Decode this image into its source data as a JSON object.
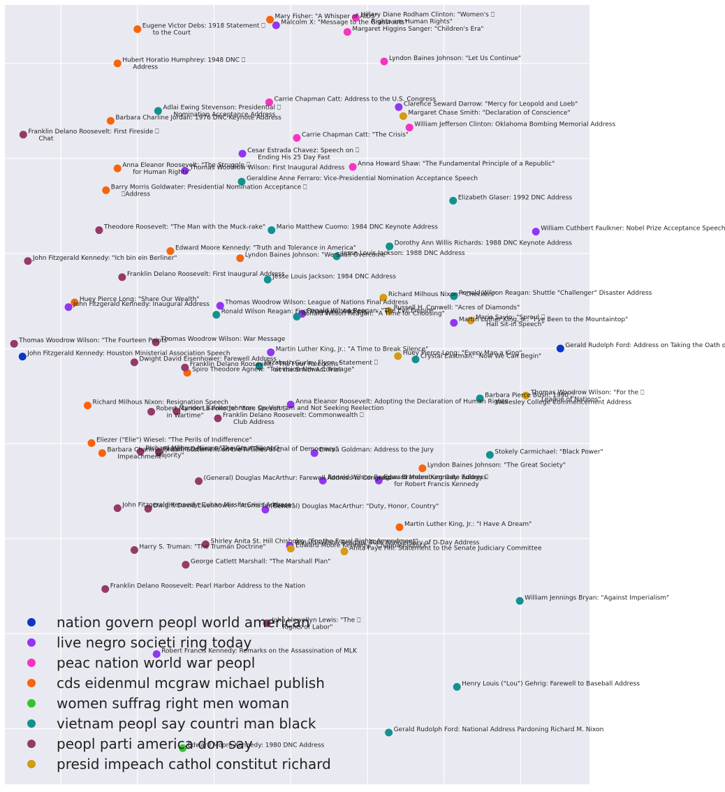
{
  "chart_data": {
    "type": "scatter",
    "title": "",
    "xlabel": "",
    "ylabel": "",
    "xlim": [
      -3.73,
      3.9
    ],
    "ylim": [
      -8.17,
      8.23
    ],
    "grid": true,
    "axes_background": "#e9e9f1",
    "grid_color": "#ffffff",
    "x_gridlines": [
      -3,
      -2,
      -1,
      0,
      1,
      2,
      3
    ],
    "y_gridlines": [
      -7,
      -5,
      -3,
      -1,
      1,
      3,
      5,
      7
    ],
    "legend_position": "bottom-left",
    "series": [
      {
        "name": "nation govern peopl world american",
        "color": "#0b36c9",
        "points": [
          {
            "x": 3.52,
            "y": 1.0,
            "label": "Gerald Rudolph Ford: Address on Taking the Oath of Office"
          },
          {
            "x": -3.5,
            "y": 0.83,
            "label": "John Fitzgerald Kennedy: Houston Ministerial Association Speech"
          }
        ]
      },
      {
        "name": "live negro societi ring today",
        "color": "#9236ef",
        "points": [
          {
            "x": -0.19,
            "y": 7.8,
            "label": "Malcolm X: \"Message to the Grassroots\""
          },
          {
            "x": 1.41,
            "y": 6.08,
            "label": "Clarence Seward Darrow: \"Mercy for Leopold and Loeb\""
          },
          {
            "x": -0.63,
            "y": 5.1,
            "label": "Cesar Estrada Chavez: Speech on ⎕\nEnding His 25 Day Fast"
          },
          {
            "x": -1.38,
            "y": 4.74,
            "label": "Thomas Woodrow Wilson: First Inaugural Address"
          },
          {
            "x": 3.2,
            "y": 3.46,
            "label": "William Cuthbert Faulkner: Nobel Prize Acceptance Speech"
          },
          {
            "x": -2.9,
            "y": 1.87,
            "label": "John Fitzgerald Kennedy: Inaugural Address"
          },
          {
            "x": -0.92,
            "y": 1.9,
            "label": "Thomas Woodrow Wilson: League of Nations Final Address"
          },
          {
            "x": 0.15,
            "y": 1.73,
            "label": "Ronald Wilson Reagan: \"The Evil Empire\""
          },
          {
            "x": 2.13,
            "y": 1.54,
            "label": "Martin Luther King, Jr.: \"I've Been to the Mountaintop\""
          },
          {
            "x": -0.26,
            "y": 0.92,
            "label": "Martin Luther King, Jr.: \"A Time to Break Silence\""
          },
          {
            "x": 0.0,
            "y": -0.18,
            "label": "Anna Eleanor Roosevelt: Adopting the Declaration of Human Rights"
          },
          {
            "x": 0.31,
            "y": -1.2,
            "label": "Emma Goldman: Address to the Jury"
          },
          {
            "x": 0.42,
            "y": -1.78,
            "label": "Ronald Wilson Reagan: Brandenburg Gate Address"
          },
          {
            "x": 1.15,
            "y": -1.78,
            "label": "Edward Moore Kennedy: Eulogy ⎕\nfor Robert Francis Kennedy"
          },
          {
            "x": -0.33,
            "y": -2.39,
            "label": "(General) Douglas MacArthur: \"Duty, Honor, Country\""
          },
          {
            "x": -0.01,
            "y": -3.15,
            "label": "Ronald Wilson Reagan: 40th Anniversary of D-Day Address"
          },
          {
            "x": -1.75,
            "y": -5.43,
            "label": "Robert Francis Kennedy: Remarks on the Assassination of MLK"
          }
        ]
      },
      {
        "name": "peac nation world war peopl",
        "color": "#f535c0",
        "points": [
          {
            "x": 0.85,
            "y": 7.96,
            "label": "Hillary Diane Rodham Clinton: \"Women's ⎕\nRights are Human Rights\""
          },
          {
            "x": 0.74,
            "y": 7.66,
            "label": "Margaret Higgins Sanger: \"Children's Era\""
          },
          {
            "x": 1.22,
            "y": 7.04,
            "label": "Lyndon Baines Johnson: \"Let Us Continue\""
          },
          {
            "x": -0.28,
            "y": 6.18,
            "label": "Carrie Chapman Catt: Address to the U.S. Congress"
          },
          {
            "x": 1.55,
            "y": 5.65,
            "label": "William Jefferson Clinton: Oklahoma Bombing Memorial Address"
          },
          {
            "x": 0.08,
            "y": 5.43,
            "label": "Carrie Chapman Catt: \"The Crisis\""
          },
          {
            "x": 0.81,
            "y": 4.82,
            "label": "Anna Howard Shaw: \"The Fundamental Principle of a Republic\""
          }
        ]
      },
      {
        "name": "cds eidenmul mcgraw michael publish",
        "color": "#f7640b",
        "points": [
          {
            "x": -0.27,
            "y": 7.92,
            "label": "Mary Fisher: \"A Whisper of AIDS\""
          },
          {
            "x": -2.0,
            "y": 7.72,
            "label": "Eugene Victor Debs: 1918 Statement ⎕\nto the Court"
          },
          {
            "x": -2.26,
            "y": 7.0,
            "label": "Hubert Horatio Humphrey: 1948 DNC ⎕\nAddress"
          },
          {
            "x": -2.35,
            "y": 5.79,
            "label": "Barbara Charline Jordan: 1976 DNC Keynote Address"
          },
          {
            "x": -2.26,
            "y": 4.79,
            "label": "Anna Eleanor Roosevelt: \"The Struggle ⎕\nfor Human Rights\""
          },
          {
            "x": -2.41,
            "y": 4.33,
            "label": "Barry Morris Goldwater: Presidential Nomination Acceptance ⎕\n⎕Address"
          },
          {
            "x": -1.57,
            "y": 3.05,
            "label": "Edward Moore Kennedy: \"Truth and Tolerance in America\""
          },
          {
            "x": -0.66,
            "y": 2.9,
            "label": "Lyndon Baines Johnson: \"We Shall Overcome\""
          },
          {
            "x": -2.82,
            "y": 1.97,
            "label": "Huey Pierce Long: \"Share Our Wealth\""
          },
          {
            "x": -1.35,
            "y": 0.49,
            "label": "Spiro Theodore Agnew: \"Television News Coverage\""
          },
          {
            "x": -2.65,
            "y": -0.2,
            "label": "Richard Milhous Nixon: Resignation Speech"
          },
          {
            "x": -2.6,
            "y": -0.99,
            "label": "Eliezer (\"Elie\") Wiesel: \"The Perils of Indifference\""
          },
          {
            "x": -2.46,
            "y": -1.2,
            "label": "Barbara Charline Jordan: Statement on the Articles of ⎕\nImpeachment"
          },
          {
            "x": 1.72,
            "y": -1.52,
            "label": "Lyndon Baines Johnson: \"The Great Society\""
          },
          {
            "x": 1.42,
            "y": -2.76,
            "label": "Martin Luther King, Jr.: \"I Have A Dream\""
          }
        ]
      },
      {
        "name": "women suffrag right men woman",
        "color": "#34c32e",
        "points": [
          {
            "x": -1.41,
            "y": -7.41,
            "label": "Edward Moore Kennedy: 1980 DNC Address"
          }
        ]
      },
      {
        "name": "vietnam peopl say countri man black",
        "color": "#12928f",
        "points": [
          {
            "x": -1.73,
            "y": 6.0,
            "label": "Adlai Ewing Stevenson: Presidential ⎕\nNomination Acceptance Address"
          },
          {
            "x": -0.64,
            "y": 4.51,
            "label": "Geraldine Anne Ferraro: Vice-Presidential Nomination Acceptance Speech"
          },
          {
            "x": 2.12,
            "y": 4.11,
            "label": "Elizabeth Glaser: 1992 DNC Address"
          },
          {
            "x": -0.25,
            "y": 3.49,
            "label": "Mario Matthew Cuomo: 1984 DNC Keynote Address"
          },
          {
            "x": 1.29,
            "y": 3.15,
            "label": "Dorothy Ann Willis Richards: 1988 DNC Keynote Address"
          },
          {
            "x": 0.6,
            "y": 2.94,
            "label": "Jesse Louis Jackson: 1988 DNC Address"
          },
          {
            "x": -0.3,
            "y": 2.45,
            "label": "Jesse Louis Jackson: 1984 DNC Address"
          },
          {
            "x": 2.13,
            "y": 2.1,
            "label": "Ronald Wilson Reagan: Shuttle \"Challenger\" Disaster Address"
          },
          {
            "x": -0.97,
            "y": 1.71,
            "label": "Ronald Wilson Reagan: First Inaugural Address"
          },
          {
            "x": 0.08,
            "y": 1.67,
            "label": "Ronald Wilson Reagan: \"A Time for Choosing\""
          },
          {
            "x": 1.63,
            "y": 0.77,
            "label": "Crystal Eastman: \"Now We Can Begin\""
          },
          {
            "x": -0.41,
            "y": 0.63,
            "label": "Elizabeth Gurley Flynn: Statement ⎕\nat the Smith Act Trial"
          },
          {
            "x": 2.47,
            "y": -0.05,
            "label": "Barbara Pierce Bush: 1990 ⎕\nWellesley College Commencement Address"
          },
          {
            "x": 2.6,
            "y": -1.24,
            "label": "Stokely Carmichael: \"Black Power\""
          },
          {
            "x": 2.99,
            "y": -4.31,
            "label": "William Jennings Bryan: \"Against Imperialism\""
          },
          {
            "x": 2.17,
            "y": -6.12,
            "label": "Henry Louis (\"Lou\") Gehrig: Farewell to Baseball Address"
          },
          {
            "x": 1.28,
            "y": -7.08,
            "label": "Gerald Rudolph Ford: National Address Pardoning Richard M. Nixon"
          }
        ]
      },
      {
        "name": "peopl parti america don say",
        "color": "#953a68",
        "points": [
          {
            "x": -3.49,
            "y": 5.5,
            "label": "Franklin Delano Roosevelt: First Fireside ⎕\nChat"
          },
          {
            "x": -2.5,
            "y": 3.49,
            "label": "Theodore Roosevelt: \"The Man with the Muck-rake\""
          },
          {
            "x": -3.43,
            "y": 2.84,
            "label": "John Fitzgerald Kennedy: \"Ich bin ein Berliner\""
          },
          {
            "x": -2.2,
            "y": 2.5,
            "label": "Franklin Delano Roosevelt: First Inaugural Address"
          },
          {
            "x": -3.61,
            "y": 1.1,
            "label": "Thomas Woodrow Wilson: \"The Fourteen Points\""
          },
          {
            "x": -1.76,
            "y": 1.13,
            "label": "Thomas Woodrow Wilson: War Message"
          },
          {
            "x": -2.04,
            "y": 0.71,
            "label": "Dwight David Eisenhower: Farewell Address"
          },
          {
            "x": -1.38,
            "y": 0.6,
            "label": "Franklin Delano Roosevelt: \"The Four Freedoms\""
          },
          {
            "x": -1.82,
            "y": -0.33,
            "label": "Robert Marion La Follette: \"Free Speech ⎕\nin Wartime\""
          },
          {
            "x": -1.49,
            "y": -0.32,
            "label": "Lyndon Baines Johnson: On Vietnam and Not Seeking Reelection"
          },
          {
            "x": -0.95,
            "y": -0.47,
            "label": "Franklin Delano Roosevelt: Commonwealth ⎕\nClub Address"
          },
          {
            "x": -1.96,
            "y": -1.17,
            "label": "Richard Milhous Nixon: \"The Great Silent ⎕\nMajority\""
          },
          {
            "x": -1.72,
            "y": -1.18,
            "label": "Franklin Delano Roosevelt: \"The Arsenal of Democracy\""
          },
          {
            "x": -1.2,
            "y": -1.79,
            "label": "(General) Douglas MacArthur: Farewell Address to Congress"
          },
          {
            "x": -2.26,
            "y": -2.36,
            "label": "John Fitzgerald Kennedy: Cuban Missile Crisis Address"
          },
          {
            "x": -1.86,
            "y": -2.37,
            "label": "Dwight David Eisenhower: \"Atoms for Peace\""
          },
          {
            "x": -1.11,
            "y": -3.12,
            "label": "Shirley Anita St. Hill Chisholm: \"For the Equal Rights Amendment\""
          },
          {
            "x": -2.04,
            "y": -3.24,
            "label": "Harry S. Truman: \"The Truman Doctrine\""
          },
          {
            "x": -1.37,
            "y": -3.55,
            "label": "George Catlett Marshall: \"The Marshall Plan\""
          },
          {
            "x": -2.42,
            "y": -4.06,
            "label": "Franklin Delano Roosevelt: Pearl Harbor Address to the Nation"
          },
          {
            "x": -0.31,
            "y": -4.78,
            "label": "John Llewellyn Lewis: \"The ⎕\nRights of Labor\""
          }
        ]
      },
      {
        "name": "presid impeach cathol constitut richard",
        "color": "#d49b13",
        "points": [
          {
            "x": 1.47,
            "y": 5.89,
            "label": "Margaret Chase Smith: \"Declaration of Conscience\""
          },
          {
            "x": 1.21,
            "y": 2.07,
            "label": "Richard Milhous Nixon: \"Checkers\""
          },
          {
            "x": 1.28,
            "y": 1.79,
            "label": "Russell H. Conwell: \"Acres of Diamonds\""
          },
          {
            "x": 2.35,
            "y": 1.59,
            "label": "Mario Savio: \"Sproul ⎕\nHall Sit-in Speech\""
          },
          {
            "x": 1.4,
            "y": 0.84,
            "label": "Huey Pierce Long: \"Every Man a King\""
          },
          {
            "x": 3.07,
            "y": 0.01,
            "label": "Thomas Woodrow Wilson: \"For the ⎕\nLeague of Nations\""
          },
          {
            "x": 0.0,
            "y": -3.21,
            "label": "Edward Moore Kennedy: \"Chappaquiddick\""
          },
          {
            "x": 0.7,
            "y": -3.27,
            "label": "Anita Faye Hill: Statement to the Senate Judiciary Committee"
          }
        ]
      }
    ]
  }
}
